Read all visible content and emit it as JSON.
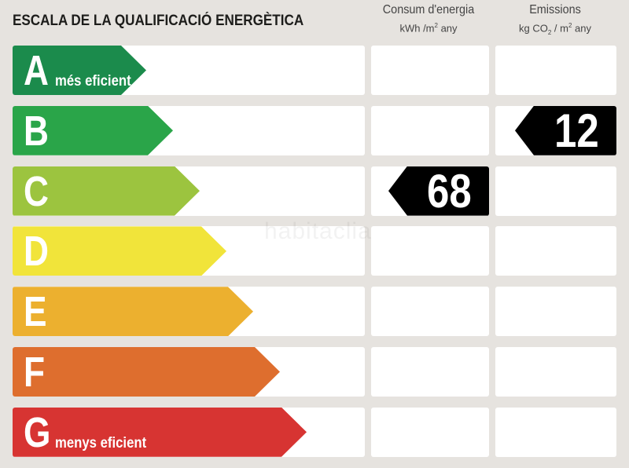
{
  "title": "ESCALA DE LA QUALIFICACIÓ ENERGÈTICA",
  "columns": {
    "consum": {
      "label": "Consum d'energia",
      "unit_prefix": "kWh /m",
      "unit_exp": "2",
      "unit_suffix": " any"
    },
    "emissions": {
      "label": "Emissions",
      "unit_prefix": "kg CO",
      "unit_sub": "2",
      "unit_mid": " / m",
      "unit_exp": "2",
      "unit_suffix": " any"
    }
  },
  "classes": [
    {
      "letter": "A",
      "note": "més eficient",
      "color": "#1b8b4c"
    },
    {
      "letter": "B",
      "note": "",
      "color": "#2aa549"
    },
    {
      "letter": "C",
      "note": "",
      "color": "#9cc43f"
    },
    {
      "letter": "D",
      "note": "",
      "color": "#f1e43a"
    },
    {
      "letter": "E",
      "note": "",
      "color": "#ecb02f"
    },
    {
      "letter": "F",
      "note": "",
      "color": "#de6e2e"
    },
    {
      "letter": "G",
      "note": "menys eficient",
      "color": "#d73432"
    }
  ],
  "ratings": {
    "consum": {
      "class": "C",
      "value": "68"
    },
    "emissions": {
      "class": "B",
      "value": "12"
    }
  },
  "watermark": "habitaclia"
}
